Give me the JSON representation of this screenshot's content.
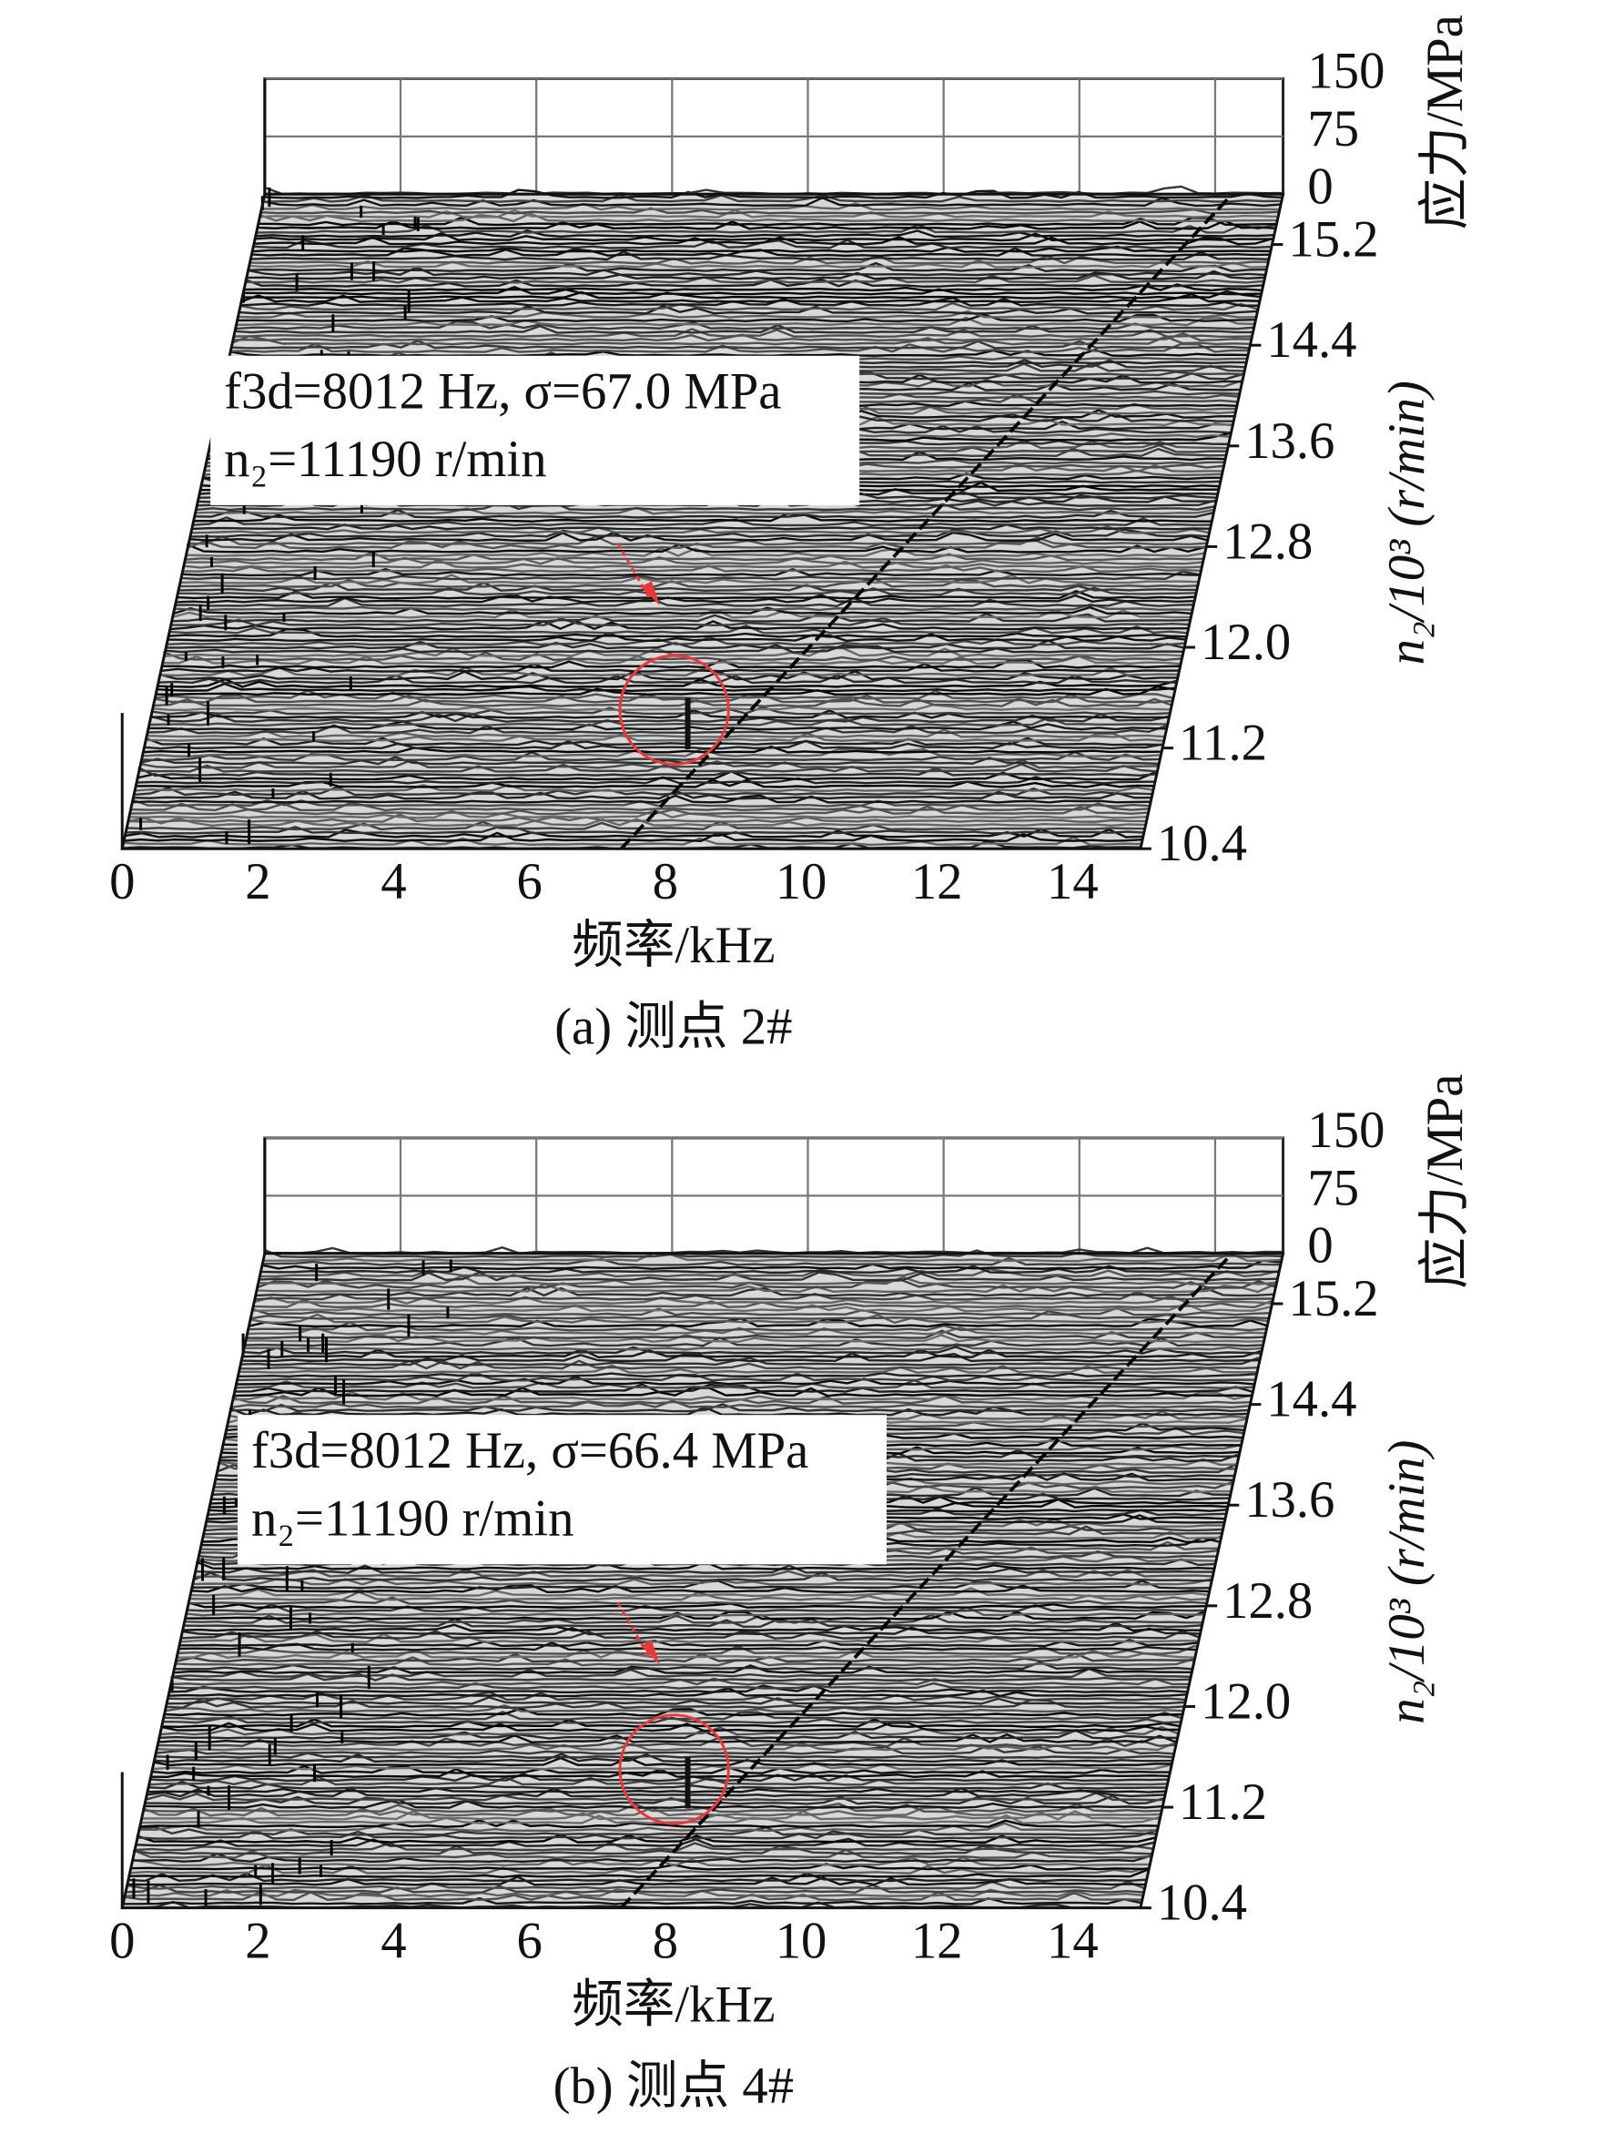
{
  "chart_data": [
    {
      "type": "waterfall",
      "caption": "(a) 测点 2#",
      "xlabel": "频率/kHz",
      "ylabel": "n₂/10³ (r/min)",
      "zlabel": "应力/MPa",
      "xlim": [
        0,
        15
      ],
      "xticks": [
        0,
        2,
        4,
        6,
        8,
        10,
        12,
        14
      ],
      "ylim": [
        10.4,
        15.6
      ],
      "yticks": [
        10.4,
        11.2,
        {
          "value": 12,
          "label": "12.0"
        },
        12.8,
        13.6,
        14.4,
        15.2
      ],
      "zlim": [
        0,
        150
      ],
      "zticks": [
        0,
        75,
        150
      ],
      "annotation": [
        "f3d=8012 Hz, σ=67.0 MPa",
        "n₂=11190 r/min"
      ],
      "peak": {
        "x": 8.012,
        "y": 11.19,
        "z": 67.0
      },
      "color": "#111111",
      "highlight_color": "#e8393a"
    },
    {
      "type": "waterfall",
      "caption": "(b) 测点 4#",
      "xlabel": "频率/kHz",
      "ylabel": "n₂/10³ (r/min)",
      "zlabel": "应力/MPa",
      "xlim": [
        0,
        15
      ],
      "xticks": [
        0,
        2,
        4,
        6,
        8,
        10,
        12,
        14
      ],
      "ylim": [
        10.4,
        15.6
      ],
      "yticks": [
        10.4,
        11.2,
        {
          "value": 12,
          "label": "12.0"
        },
        12.8,
        13.6,
        14.4,
        15.2
      ],
      "zlim": [
        0,
        150
      ],
      "zticks": [
        0,
        75,
        150
      ],
      "annotation": [
        "f3d=8012 Hz, σ=66.4 MPa",
        "n₂=11190 r/min"
      ],
      "peak": {
        "x": 8.012,
        "y": 11.19,
        "z": 66.4
      },
      "color": "#111111",
      "highlight_color": "#e8393a"
    }
  ]
}
